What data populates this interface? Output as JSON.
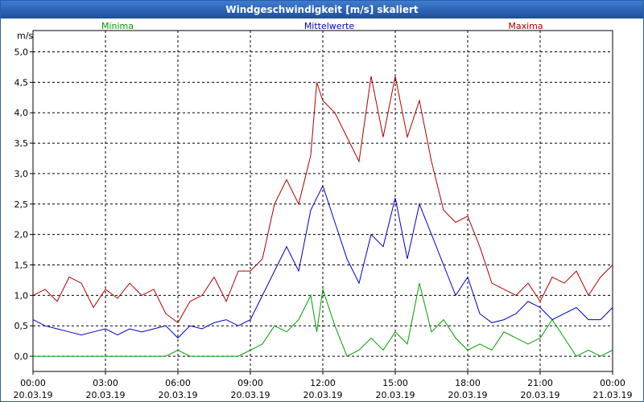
{
  "window": {
    "title": "Windgeschwindigkeit [m/s] skaliert"
  },
  "chart_data": {
    "type": "line",
    "title": "Windgeschwindigkeit [m/s] skaliert",
    "ylabel": "m/s",
    "xlabel": "",
    "ylim": [
      -0.25,
      5.35
    ],
    "xlim": [
      0,
      24
    ],
    "yticks": [
      "0,0",
      "0,5",
      "1,0",
      "1,5",
      "2,0",
      "2,5",
      "3,0",
      "3,5",
      "4,0",
      "4,5",
      "5,0"
    ],
    "ytick_values": [
      0,
      0.5,
      1.0,
      1.5,
      2.0,
      2.5,
      3.0,
      3.5,
      4.0,
      4.5,
      5.0
    ],
    "xticks": [
      {
        "time": "00:00",
        "date": "20.03.19"
      },
      {
        "time": "03:00",
        "date": "20.03.19"
      },
      {
        "time": "06:00",
        "date": "20.03.19"
      },
      {
        "time": "09:00",
        "date": "20.03.19"
      },
      {
        "time": "12:00",
        "date": "20.03.19"
      },
      {
        "time": "15:00",
        "date": "20.03.19"
      },
      {
        "time": "18:00",
        "date": "20.03.19"
      },
      {
        "time": "21:00",
        "date": "20.03.19"
      },
      {
        "time": "00:00",
        "date": "21.03.19"
      }
    ],
    "xtick_values": [
      0,
      3,
      6,
      9,
      12,
      15,
      18,
      21,
      24
    ],
    "grid": true,
    "x": [
      0,
      0.5,
      1,
      1.5,
      2,
      2.5,
      3,
      3.5,
      4,
      4.5,
      5,
      5.5,
      6,
      6.5,
      7,
      7.5,
      8,
      8.5,
      9,
      9.5,
      10,
      10.5,
      11,
      11.5,
      11.75,
      12,
      12.5,
      13,
      13.5,
      14,
      14.5,
      15,
      15.5,
      16,
      16.5,
      17,
      17.5,
      18,
      18.5,
      19,
      19.5,
      20,
      20.5,
      21,
      21.5,
      22,
      22.5,
      23,
      23.5,
      24
    ],
    "series": [
      {
        "name": "Minima",
        "color": "#00a000",
        "values": [
          0,
          0,
          0,
          0,
          0,
          0,
          0,
          0,
          0,
          0,
          0,
          0,
          0.1,
          0,
          0,
          0,
          0,
          0,
          0.1,
          0.2,
          0.5,
          0.4,
          0.6,
          1.0,
          0.4,
          1.1,
          0.5,
          0,
          0.1,
          0.3,
          0.1,
          0.4,
          0.2,
          1.2,
          0.4,
          0.6,
          0.3,
          0.1,
          0.2,
          0.1,
          0.4,
          0.3,
          0.2,
          0.3,
          0.6,
          0.3,
          0,
          0.1,
          0,
          0.1
        ]
      },
      {
        "name": "Mittelwerte",
        "color": "#0000c0",
        "values": [
          0.6,
          0.5,
          0.45,
          0.4,
          0.35,
          0.4,
          0.45,
          0.35,
          0.45,
          0.4,
          0.45,
          0.5,
          0.3,
          0.5,
          0.45,
          0.55,
          0.6,
          0.5,
          0.6,
          1.0,
          1.4,
          1.8,
          1.4,
          2.4,
          2.6,
          2.8,
          2.2,
          1.6,
          1.2,
          2.0,
          1.8,
          2.6,
          1.6,
          2.5,
          2.0,
          1.5,
          1.0,
          1.3,
          0.7,
          0.55,
          0.6,
          0.7,
          0.9,
          0.8,
          0.6,
          0.7,
          0.8,
          0.6,
          0.6,
          0.8
        ]
      },
      {
        "name": "Maxima",
        "color": "#b00000",
        "values": [
          1.0,
          1.1,
          0.9,
          1.3,
          1.2,
          0.8,
          1.1,
          0.95,
          1.2,
          1.0,
          1.1,
          0.7,
          0.55,
          0.9,
          1.0,
          1.3,
          0.9,
          1.4,
          1.4,
          1.6,
          2.5,
          2.9,
          2.5,
          3.3,
          4.5,
          4.2,
          4.0,
          3.6,
          3.2,
          4.6,
          3.6,
          4.6,
          3.6,
          4.2,
          3.2,
          2.4,
          2.2,
          2.3,
          1.8,
          1.2,
          1.1,
          1.0,
          1.2,
          0.9,
          1.3,
          1.2,
          1.4,
          1.0,
          1.3,
          1.5
        ]
      }
    ]
  }
}
